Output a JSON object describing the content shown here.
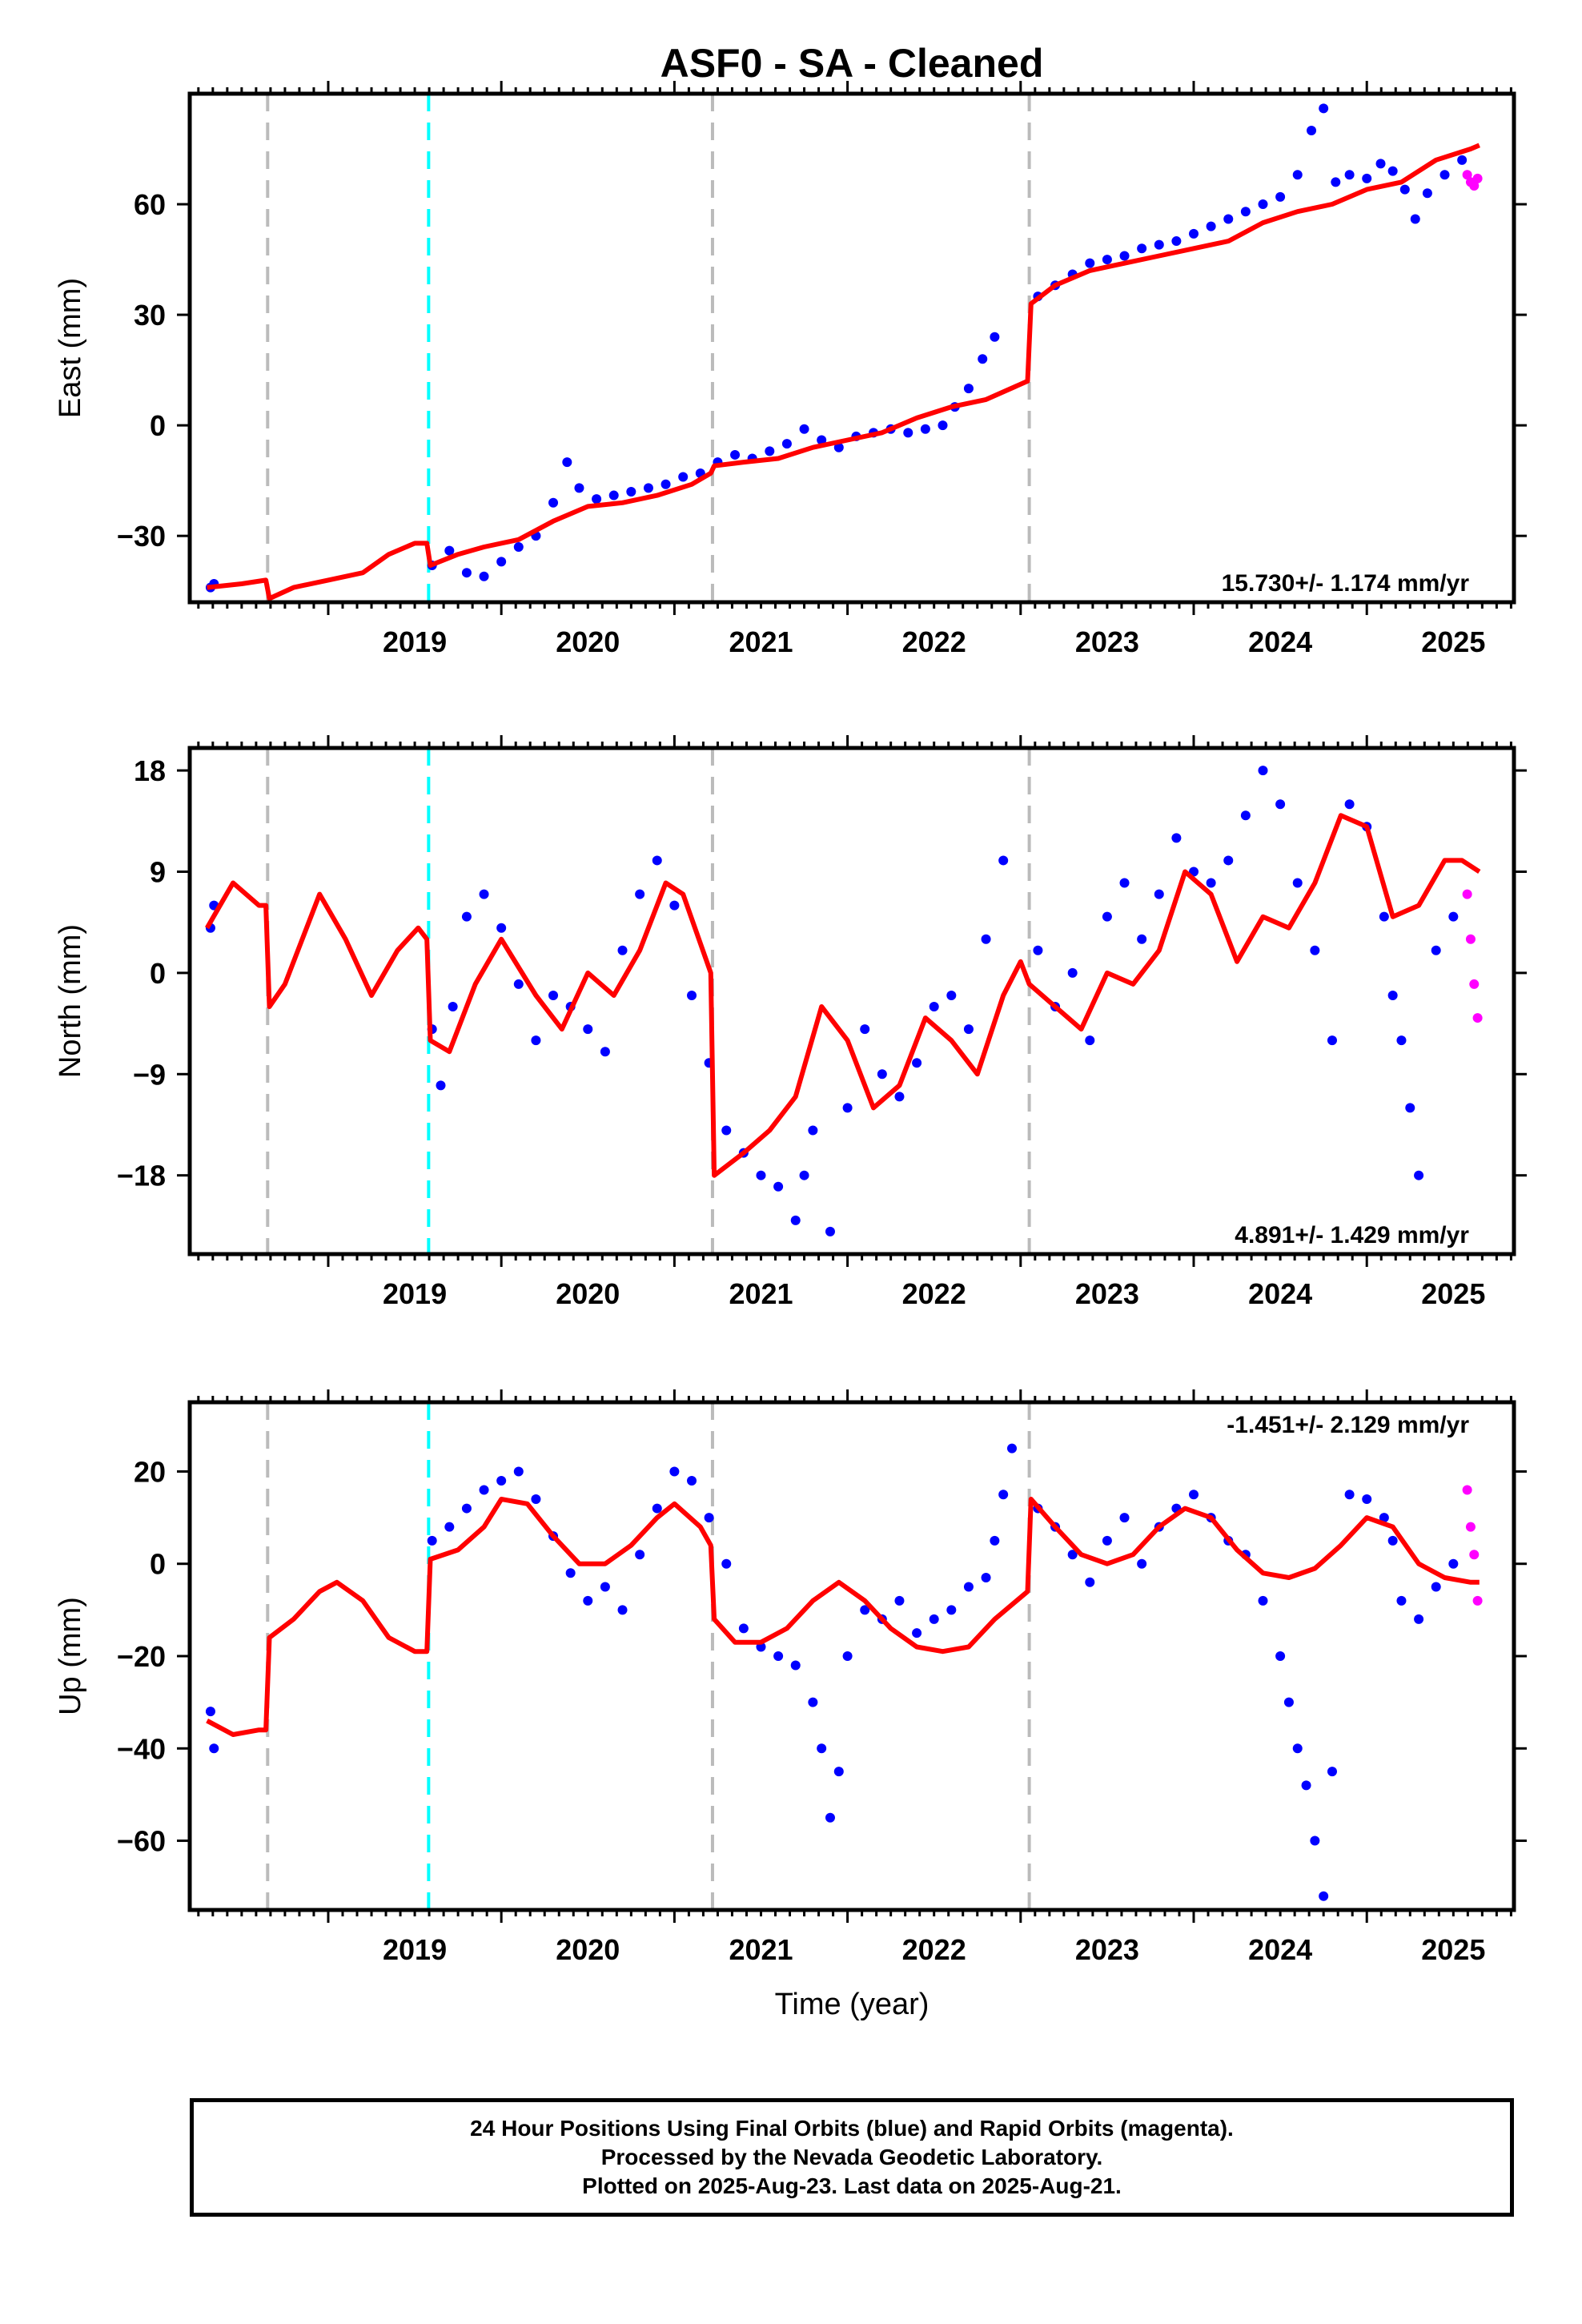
{
  "title": "ASF0  - SA - Cleaned",
  "xlabel": "Time (year)",
  "footer": {
    "line1": "24 Hour Positions Using Final Orbits (blue) and Rapid Orbits (magenta).",
    "line2": "Processed by the Nevada Geodetic Laboratory.",
    "line3": "Plotted on 2025-Aug-23. Last data on 2025-Aug-21."
  },
  "colors": {
    "final_orbits": "#0000ff",
    "rapid_orbits": "#ff00ff",
    "model": "#ff0000",
    "equipment_change": "#bbbbbb",
    "earthquake": "#00ffff"
  },
  "chart_data": [
    {
      "type": "scatter",
      "name": "east",
      "ylabel": "East (mm)",
      "rate_label": "15.730+/- 1.174 mm/yr",
      "xlim": [
        2018.2,
        2025.85
      ],
      "ylim": [
        -48,
        90
      ],
      "xticks": [
        "2019",
        "2020",
        "2021",
        "2022",
        "2023",
        "2024",
        "2025"
      ],
      "yticks": [
        -30,
        0,
        30,
        60
      ],
      "grid": false,
      "gray_dashed_x": [
        2018.65,
        2021.22,
        2023.05
      ],
      "cyan_dashed_x": [
        2019.58
      ],
      "series": [
        {
          "name": "final_orbits",
          "kind": "points",
          "x": [
            2018.32,
            2018.34,
            2019.6,
            2019.7,
            2019.8,
            2019.9,
            2020.0,
            2020.1,
            2020.2,
            2020.3,
            2020.38,
            2020.45,
            2020.55,
            2020.65,
            2020.75,
            2020.85,
            2020.95,
            2021.05,
            2021.15,
            2021.25,
            2021.35,
            2021.45,
            2021.55,
            2021.65,
            2021.75,
            2021.85,
            2021.95,
            2022.05,
            2022.15,
            2022.25,
            2022.35,
            2022.45,
            2022.55,
            2022.62,
            2022.7,
            2022.78,
            2022.85,
            2023.1,
            2023.2,
            2023.3,
            2023.4,
            2023.5,
            2023.6,
            2023.7,
            2023.8,
            2023.9,
            2024.0,
            2024.1,
            2024.2,
            2024.3,
            2024.4,
            2024.5,
            2024.6,
            2024.68,
            2024.75,
            2024.82,
            2024.9,
            2025.0,
            2025.08,
            2025.15,
            2025.22,
            2025.28,
            2025.35,
            2025.45,
            2025.55
          ],
          "y": [
            -44,
            -43,
            -38,
            -34,
            -40,
            -41,
            -37,
            -33,
            -30,
            -21,
            -10,
            -17,
            -20,
            -19,
            -18,
            -17,
            -16,
            -14,
            -13,
            -10,
            -8,
            -9,
            -7,
            -5,
            -1,
            -4,
            -6,
            -3,
            -2,
            -1,
            -2,
            -1,
            0,
            5,
            10,
            18,
            24,
            35,
            38,
            41,
            44,
            45,
            46,
            48,
            49,
            50,
            52,
            54,
            56,
            58,
            60,
            62,
            68,
            80,
            86,
            66,
            68,
            67,
            71,
            69,
            64,
            56,
            63,
            68,
            72
          ]
        },
        {
          "name": "rapid_orbits",
          "kind": "points",
          "x": [
            2025.58,
            2025.6,
            2025.62,
            2025.64
          ],
          "y": [
            68,
            66,
            65,
            67
          ]
        },
        {
          "name": "model",
          "kind": "line",
          "x": [
            2018.3,
            2018.5,
            2018.64,
            2018.66,
            2018.8,
            2019.0,
            2019.2,
            2019.35,
            2019.5,
            2019.57,
            2019.59,
            2019.75,
            2019.9,
            2020.1,
            2020.3,
            2020.5,
            2020.7,
            2020.9,
            2021.1,
            2021.21,
            2021.23,
            2021.4,
            2021.6,
            2021.8,
            2022.0,
            2022.2,
            2022.4,
            2022.6,
            2022.8,
            2023.04,
            2023.06,
            2023.2,
            2023.4,
            2023.6,
            2023.8,
            2024.0,
            2024.2,
            2024.4,
            2024.6,
            2024.8,
            2025.0,
            2025.2,
            2025.4,
            2025.6,
            2025.65
          ],
          "y": [
            -44,
            -43,
            -42,
            -47,
            -44,
            -42,
            -40,
            -35,
            -32,
            -32,
            -38,
            -35,
            -33,
            -31,
            -26,
            -22,
            -21,
            -19,
            -16,
            -13,
            -11,
            -10,
            -9,
            -6,
            -4,
            -2,
            2,
            5,
            7,
            12,
            33,
            38,
            42,
            44,
            46,
            48,
            50,
            55,
            58,
            60,
            64,
            66,
            72,
            75,
            76
          ]
        }
      ]
    },
    {
      "type": "scatter",
      "name": "north",
      "ylabel": "North (mm)",
      "rate_label": "4.891+/- 1.429 mm/yr",
      "xlim": [
        2018.2,
        2025.85
      ],
      "ylim": [
        -25,
        20
      ],
      "xticks": [
        "2019",
        "2020",
        "2021",
        "2022",
        "2023",
        "2024",
        "2025"
      ],
      "yticks": [
        -18,
        -9,
        0,
        9,
        18
      ],
      "grid": false,
      "gray_dashed_x": [
        2018.65,
        2021.22,
        2023.05
      ],
      "cyan_dashed_x": [
        2019.58
      ],
      "series": [
        {
          "name": "final_orbits",
          "kind": "points",
          "x": [
            2018.32,
            2018.34,
            2019.6,
            2019.65,
            2019.72,
            2019.8,
            2019.9,
            2020.0,
            2020.1,
            2020.2,
            2020.3,
            2020.4,
            2020.5,
            2020.6,
            2020.7,
            2020.8,
            2020.9,
            2021.0,
            2021.1,
            2021.2,
            2021.3,
            2021.4,
            2021.5,
            2021.6,
            2021.7,
            2021.75,
            2021.8,
            2021.9,
            2022.0,
            2022.1,
            2022.2,
            2022.3,
            2022.4,
            2022.5,
            2022.6,
            2022.7,
            2022.8,
            2022.9,
            2023.1,
            2023.2,
            2023.3,
            2023.4,
            2023.5,
            2023.6,
            2023.7,
            2023.8,
            2023.9,
            2024.0,
            2024.1,
            2024.2,
            2024.3,
            2024.4,
            2024.5,
            2024.6,
            2024.7,
            2024.8,
            2024.9,
            2025.0,
            2025.1,
            2025.15,
            2025.2,
            2025.25,
            2025.3,
            2025.4,
            2025.5
          ],
          "y": [
            4,
            6,
            -5,
            -10,
            -3,
            5,
            7,
            4,
            -1,
            -6,
            -2,
            -3,
            -5,
            -7,
            2,
            7,
            10,
            6,
            -2,
            -8,
            -14,
            -16,
            -18,
            -19,
            -22,
            -18,
            -14,
            -23,
            -12,
            -5,
            -9,
            -11,
            -8,
            -3,
            -2,
            -5,
            3,
            10,
            2,
            -3,
            0,
            -6,
            5,
            8,
            3,
            7,
            12,
            9,
            8,
            10,
            14,
            18,
            15,
            8,
            2,
            -6,
            15,
            13,
            5,
            -2,
            -6,
            -12,
            -18,
            2,
            5
          ]
        },
        {
          "name": "rapid_orbits",
          "kind": "points",
          "x": [
            2025.58,
            2025.6,
            2025.62,
            2025.64
          ],
          "y": [
            7,
            3,
            -1,
            -4
          ]
        },
        {
          "name": "model",
          "kind": "line",
          "x": [
            2018.3,
            2018.45,
            2018.6,
            2018.64,
            2018.66,
            2018.75,
            2018.95,
            2019.1,
            2019.25,
            2019.4,
            2019.52,
            2019.57,
            2019.59,
            2019.7,
            2019.85,
            2020.0,
            2020.2,
            2020.35,
            2020.5,
            2020.65,
            2020.8,
            2020.95,
            2021.05,
            2021.21,
            2021.23,
            2021.4,
            2021.55,
            2021.7,
            2021.85,
            2022.0,
            2022.15,
            2022.3,
            2022.45,
            2022.6,
            2022.75,
            2022.9,
            2023.0,
            2023.05,
            2023.2,
            2023.35,
            2023.5,
            2023.65,
            2023.8,
            2023.95,
            2024.1,
            2024.25,
            2024.4,
            2024.55,
            2024.7,
            2024.85,
            2025.0,
            2025.15,
            2025.3,
            2025.45,
            2025.55,
            2025.65
          ],
          "y": [
            4,
            8,
            6,
            6,
            -3,
            -1,
            7,
            3,
            -2,
            2,
            4,
            3,
            -6,
            -7,
            -1,
            3,
            -2,
            -5,
            0,
            -2,
            2,
            8,
            7,
            0,
            -18,
            -16,
            -14,
            -11,
            -3,
            -6,
            -12,
            -10,
            -4,
            -6,
            -9,
            -2,
            1,
            -1,
            -3,
            -5,
            0,
            -1,
            2,
            9,
            7,
            1,
            5,
            4,
            8,
            14,
            13,
            5,
            6,
            10,
            10,
            9
          ]
        }
      ]
    },
    {
      "type": "scatter",
      "name": "up",
      "ylabel": "Up (mm)",
      "rate_label": "-1.451+/- 2.129 mm/yr",
      "xlim": [
        2018.2,
        2025.85
      ],
      "ylim": [
        -75,
        35
      ],
      "xticks": [
        "2019",
        "2020",
        "2021",
        "2022",
        "2023",
        "2024",
        "2025"
      ],
      "yticks": [
        -60,
        -40,
        -20,
        0,
        20
      ],
      "grid": false,
      "gray_dashed_x": [
        2018.65,
        2021.22,
        2023.05
      ],
      "cyan_dashed_x": [
        2019.58
      ],
      "series": [
        {
          "name": "final_orbits",
          "kind": "points",
          "x": [
            2018.32,
            2018.34,
            2019.6,
            2019.7,
            2019.8,
            2019.9,
            2020.0,
            2020.1,
            2020.2,
            2020.3,
            2020.4,
            2020.5,
            2020.6,
            2020.7,
            2020.8,
            2020.9,
            2021.0,
            2021.1,
            2021.2,
            2021.3,
            2021.4,
            2021.5,
            2021.6,
            2021.7,
            2021.8,
            2021.85,
            2021.9,
            2021.95,
            2022.0,
            2022.1,
            2022.2,
            2022.3,
            2022.4,
            2022.5,
            2022.6,
            2022.7,
            2022.8,
            2022.85,
            2022.9,
            2022.95,
            2023.1,
            2023.2,
            2023.3,
            2023.4,
            2023.5,
            2023.6,
            2023.7,
            2023.8,
            2023.9,
            2024.0,
            2024.1,
            2024.2,
            2024.3,
            2024.4,
            2024.5,
            2024.55,
            2024.6,
            2024.65,
            2024.7,
            2024.75,
            2024.8,
            2024.9,
            2025.0,
            2025.1,
            2025.15,
            2025.2,
            2025.3,
            2025.4,
            2025.5
          ],
          "y": [
            -32,
            -40,
            5,
            8,
            12,
            16,
            18,
            20,
            14,
            6,
            -2,
            -8,
            -5,
            -10,
            2,
            12,
            20,
            18,
            10,
            0,
            -14,
            -18,
            -20,
            -22,
            -30,
            -40,
            -55,
            -45,
            -20,
            -10,
            -12,
            -8,
            -15,
            -12,
            -10,
            -5,
            -3,
            5,
            15,
            25,
            12,
            8,
            2,
            -4,
            5,
            10,
            0,
            8,
            12,
            15,
            10,
            5,
            2,
            -8,
            -20,
            -30,
            -40,
            -48,
            -60,
            -72,
            -45,
            15,
            14,
            10,
            5,
            -8,
            -12,
            -5,
            0
          ]
        },
        {
          "name": "rapid_orbits",
          "kind": "points",
          "x": [
            2025.58,
            2025.6,
            2025.62,
            2025.64
          ],
          "y": [
            16,
            8,
            2,
            -8
          ]
        },
        {
          "name": "model",
          "kind": "line",
          "x": [
            2018.3,
            2018.45,
            2018.6,
            2018.64,
            2018.66,
            2018.8,
            2018.95,
            2019.05,
            2019.2,
            2019.35,
            2019.5,
            2019.57,
            2019.59,
            2019.75,
            2019.9,
            2020.0,
            2020.15,
            2020.3,
            2020.45,
            2020.6,
            2020.75,
            2020.9,
            2021.0,
            2021.15,
            2021.21,
            2021.23,
            2021.35,
            2021.5,
            2021.65,
            2021.8,
            2021.95,
            2022.1,
            2022.25,
            2022.4,
            2022.55,
            2022.7,
            2022.85,
            2023.04,
            2023.06,
            2023.2,
            2023.35,
            2023.5,
            2023.65,
            2023.8,
            2023.95,
            2024.1,
            2024.25,
            2024.4,
            2024.55,
            2024.7,
            2024.85,
            2025.0,
            2025.15,
            2025.3,
            2025.45,
            2025.6,
            2025.65
          ],
          "y": [
            -34,
            -37,
            -36,
            -36,
            -16,
            -12,
            -6,
            -4,
            -8,
            -16,
            -19,
            -19,
            1,
            3,
            8,
            14,
            13,
            6,
            0,
            0,
            4,
            10,
            13,
            8,
            4,
            -12,
            -17,
            -17,
            -14,
            -8,
            -4,
            -8,
            -14,
            -18,
            -19,
            -18,
            -12,
            -6,
            14,
            8,
            2,
            0,
            2,
            8,
            12,
            10,
            3,
            -2,
            -3,
            -1,
            4,
            10,
            8,
            0,
            -3,
            -4,
            -4
          ]
        }
      ]
    }
  ]
}
